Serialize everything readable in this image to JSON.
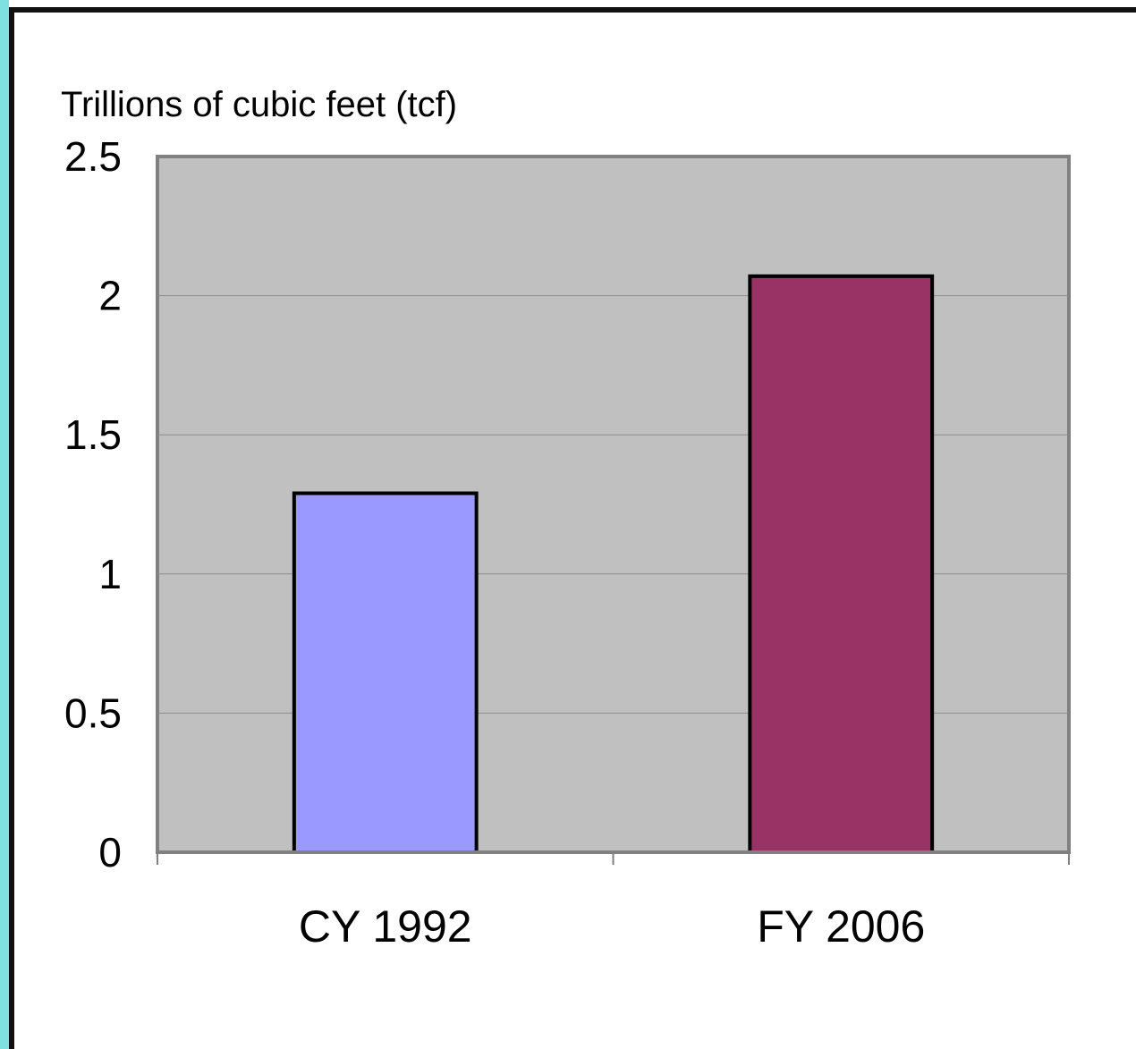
{
  "chart_data": {
    "type": "bar",
    "ylabel": "Trillions of cubic feet (tcf)",
    "categories": [
      "CY 1992",
      "FY 2006"
    ],
    "values": [
      1.29,
      2.07
    ],
    "ylim": [
      0,
      2.5
    ],
    "yticks": [
      "0",
      "0.5",
      "1",
      "1.5",
      "2",
      "2.5"
    ],
    "grid": true,
    "bar_colors": [
      "#9999ff",
      "#993366"
    ],
    "plot_background": "#c0c0c0"
  }
}
